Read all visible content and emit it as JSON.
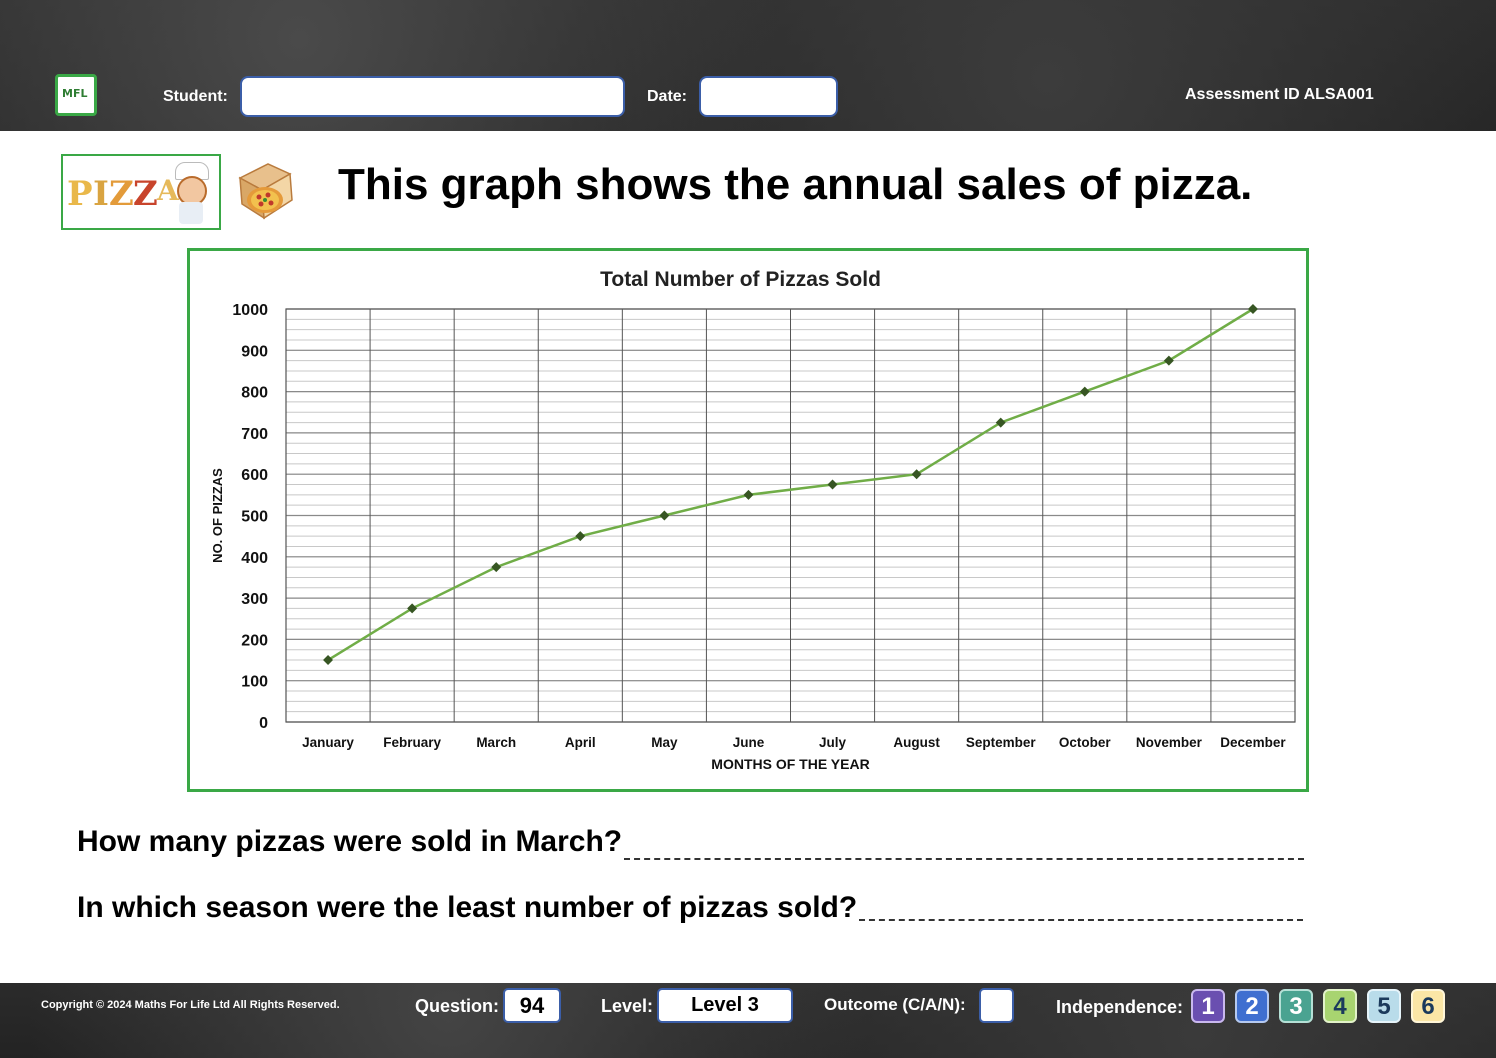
{
  "header": {
    "logo_text": "MFL",
    "student_label": "Student:",
    "student_value": "",
    "date_label": "Date:",
    "date_value": "",
    "assessment_id": "Assessment ID ALSA001"
  },
  "banner": {
    "word": "PIZZA"
  },
  "title": "This graph shows the annual sales of pizza.",
  "chart_data": {
    "type": "line",
    "title": "Total Number of Pizzas Sold",
    "xlabel": "MONTHS OF THE YEAR",
    "ylabel": "NO. OF PIZZAS",
    "categories": [
      "January",
      "February",
      "March",
      "April",
      "May",
      "June",
      "July",
      "August",
      "September",
      "October",
      "November",
      "December"
    ],
    "series": [
      {
        "values": [
          150,
          275,
          375,
          450,
          500,
          550,
          575,
          600,
          725,
          800,
          875,
          1000
        ]
      }
    ],
    "ylim": [
      0,
      1000
    ],
    "yticks": [
      0,
      100,
      200,
      300,
      400,
      500,
      600,
      700,
      800,
      900,
      1000
    ],
    "minor_gridline_step": 25,
    "grid": true,
    "legend": "none",
    "line_color": "#70ad47",
    "marker_color": "#375623"
  },
  "questions": [
    {
      "text": "How many pizzas were sold in March?"
    },
    {
      "text": "In which season were the least number of pizzas sold?"
    }
  ],
  "footer": {
    "copyright": "Copyright © 2024 Maths For Life Ltd All Rights Reserved.",
    "question_label": "Question:",
    "question_value": "94",
    "level_label": "Level:",
    "level_value": "Level 3",
    "outcome_label": "Outcome (C/A/N):",
    "outcome_value": "",
    "independence_label": "Independence:",
    "independence_levels": [
      {
        "label": "1",
        "bg": "#6a4fb0",
        "fg": "#ffffff",
        "border": "#c9b8ee"
      },
      {
        "label": "2",
        "bg": "#3f6fd0",
        "fg": "#ffffff",
        "border": "#b5c9f0"
      },
      {
        "label": "3",
        "bg": "#4aa391",
        "fg": "#ffffff",
        "border": "#b5e0d6"
      },
      {
        "label": "4",
        "bg": "#a8d470",
        "fg": "#1b3a5c",
        "border": "#e2f2c9"
      },
      {
        "label": "5",
        "bg": "#b9dcea",
        "fg": "#1b3a5c",
        "border": "#e6f4fa"
      },
      {
        "label": "6",
        "bg": "#fbe6a6",
        "fg": "#1b3a5c",
        "border": "#fff6d8"
      }
    ]
  }
}
